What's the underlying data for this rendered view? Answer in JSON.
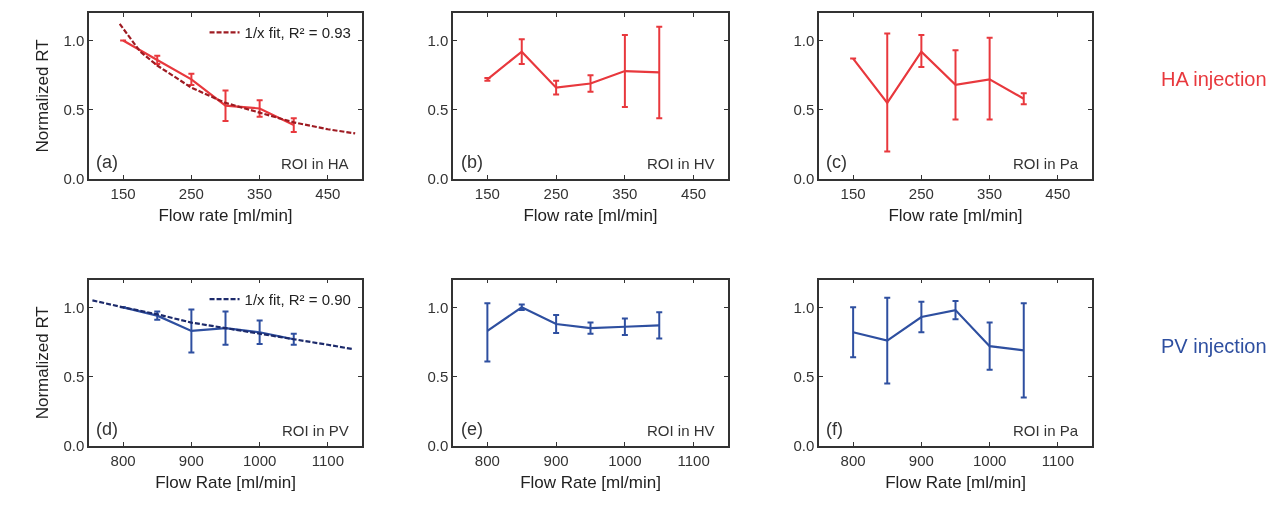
{
  "chart_data": [
    {
      "type": "line",
      "xlabel": "Flow rate [ml/min]",
      "ylabel": "Normalized RT",
      "xlim": [
        100,
        500
      ],
      "ylim": [
        0,
        1.2
      ],
      "xticks": [
        150,
        250,
        350,
        450
      ],
      "yticks": [
        {
          "value": 0,
          "label": "0.0"
        },
        {
          "value": 0.5,
          "label": "0.5"
        },
        {
          "value": 1,
          "label": "1.0"
        }
      ],
      "marker": "none",
      "legend": "top right",
      "annotations": [
        "(a)",
        "ROI in HA"
      ],
      "series": [
        {
          "color": "#e8383d",
          "line_style": "solid",
          "x": [
            150,
            200,
            250,
            300,
            350,
            400
          ],
          "values": [
            1.0,
            0.86,
            0.72,
            0.53,
            0.51,
            0.39
          ],
          "errors": [
            null,
            0.03,
            0.04,
            0.11,
            0.06,
            0.05
          ]
        },
        {
          "name": "1/x fit, R² = 0.93",
          "color": "#9e1b22",
          "line_style": "dashed",
          "x": [
            145,
            175,
            200,
            250,
            300,
            350,
            400,
            450,
            490
          ],
          "values": [
            1.12,
            0.92,
            0.82,
            0.66,
            0.55,
            0.48,
            0.41,
            0.36,
            0.33
          ]
        }
      ]
    },
    {
      "type": "line",
      "xlabel": "Flow rate [ml/min]",
      "xlim": [
        100,
        500
      ],
      "ylim": [
        0,
        1.2
      ],
      "xticks": [
        150,
        250,
        350,
        450
      ],
      "yticks": [
        {
          "value": 0,
          "label": "0.0"
        },
        {
          "value": 0.5,
          "label": "0.5"
        },
        {
          "value": 1,
          "label": "1.0"
        }
      ],
      "marker": "none",
      "annotations": [
        "(b)",
        "ROI in HV"
      ],
      "series": [
        {
          "color": "#e8383d",
          "line_style": "solid",
          "x": [
            150,
            200,
            250,
            300,
            350,
            400
          ],
          "values": [
            0.72,
            0.92,
            0.66,
            0.69,
            0.78,
            0.77
          ],
          "errors": [
            0.01,
            0.09,
            0.05,
            0.06,
            0.26,
            0.33
          ]
        }
      ]
    },
    {
      "type": "line",
      "xlabel": "Flow rate [ml/min]",
      "xlim": [
        100,
        500
      ],
      "ylim": [
        0,
        1.2
      ],
      "xticks": [
        150,
        250,
        350,
        450
      ],
      "yticks": [
        {
          "value": 0,
          "label": "0.0"
        },
        {
          "value": 0.5,
          "label": "0.5"
        },
        {
          "value": 1,
          "label": "1.0"
        }
      ],
      "marker": "none",
      "annotations": [
        "(c)",
        "ROI in Pa",
        "HA injection"
      ],
      "series": [
        {
          "color": "#e8383d",
          "line_style": "solid",
          "x": [
            150,
            200,
            250,
            300,
            350,
            400
          ],
          "values": [
            0.87,
            0.55,
            0.92,
            0.68,
            0.72,
            0.58
          ],
          "errors": [
            null,
            [
              0.2,
              1.05
            ],
            [
              0.81,
              1.04
            ],
            0.25,
            [
              0.43,
              1.02
            ],
            0.04
          ]
        }
      ]
    },
    {
      "type": "line",
      "xlabel": "Flow Rate [ml/min]",
      "ylabel": "Normalized RT",
      "xlim": [
        750,
        1150
      ],
      "ylim": [
        0,
        1.2
      ],
      "xticks": [
        800,
        900,
        1000,
        1100
      ],
      "yticks": [
        {
          "value": 0,
          "label": "0.0"
        },
        {
          "value": 0.5,
          "label": "0.5"
        },
        {
          "value": 1,
          "label": "1.0"
        }
      ],
      "marker": "none",
      "legend": "top right",
      "annotations": [
        "(d)",
        "ROI in PV"
      ],
      "series": [
        {
          "color": "#2e4fa0",
          "line_style": "solid",
          "x": [
            800,
            850,
            900,
            950,
            1000,
            1050
          ],
          "values": [
            1.0,
            0.94,
            0.83,
            0.85,
            0.82,
            0.77
          ],
          "errors": [
            null,
            0.03,
            0.155,
            0.12,
            0.085,
            0.04
          ]
        },
        {
          "name": "1/x fit, R² = 0.90",
          "color": "#1c2a6b",
          "line_style": "dashed",
          "x": [
            755,
            800,
            850,
            900,
            950,
            1000,
            1050,
            1100,
            1135
          ],
          "values": [
            1.05,
            1.0,
            0.95,
            0.89,
            0.85,
            0.81,
            0.77,
            0.73,
            0.7
          ]
        }
      ]
    },
    {
      "type": "line",
      "xlabel": "Flow Rate [ml/min]",
      "xlim": [
        750,
        1150
      ],
      "ylim": [
        0,
        1.2
      ],
      "xticks": [
        800,
        900,
        1000,
        1100
      ],
      "yticks": [
        {
          "value": 0,
          "label": "0.0"
        },
        {
          "value": 0.5,
          "label": "0.5"
        },
        {
          "value": 1,
          "label": "1.0"
        }
      ],
      "marker": "none",
      "annotations": [
        "(e)",
        "ROI in HV"
      ],
      "series": [
        {
          "color": "#2e4fa0",
          "line_style": "solid",
          "x": [
            800,
            850,
            900,
            950,
            1000,
            1050
          ],
          "values": [
            0.83,
            1.0,
            0.88,
            0.85,
            0.86,
            0.87
          ],
          "errors": [
            [
              0.61,
              1.03
            ],
            0.02,
            0.065,
            0.04,
            0.06,
            0.095
          ]
        }
      ]
    },
    {
      "type": "line",
      "xlabel": "Flow Rate [ml/min]",
      "xlim": [
        750,
        1150
      ],
      "ylim": [
        0,
        1.2
      ],
      "xticks": [
        800,
        900,
        1000,
        1100
      ],
      "yticks": [
        {
          "value": 0,
          "label": "0.0"
        },
        {
          "value": 0.5,
          "label": "0.5"
        },
        {
          "value": 1,
          "label": "1.0"
        }
      ],
      "marker": "none",
      "annotations": [
        "(f)",
        "ROI in Pa",
        "PV injection"
      ],
      "series": [
        {
          "color": "#2e4fa0",
          "line_style": "solid",
          "x": [
            800,
            850,
            900,
            950,
            1000,
            1050
          ],
          "values": [
            0.82,
            0.76,
            0.93,
            0.98,
            0.72,
            0.69
          ],
          "errors": [
            0.18,
            0.31,
            0.11,
            0.065,
            0.17,
            0.34
          ]
        }
      ]
    }
  ]
}
